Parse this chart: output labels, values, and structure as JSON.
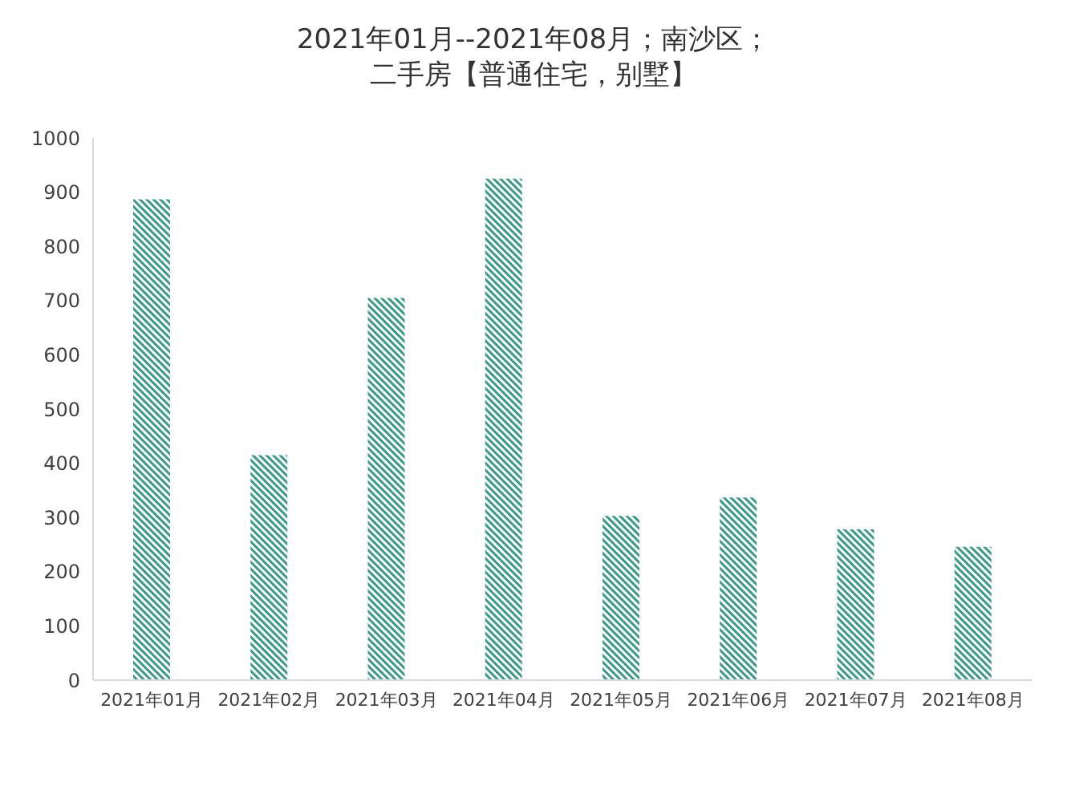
{
  "chart_data": {
    "type": "bar",
    "title": "2021年01月--2021年08月；南沙区；二手房【普通住宅，别墅】",
    "categories": [
      "2021年01月",
      "2021年02月",
      "2021年03月",
      "2021年04月",
      "2021年05月",
      "2021年06月",
      "2021年07月",
      "2021年08月"
    ],
    "values": [
      887,
      415,
      705,
      925,
      303,
      337,
      278,
      246
    ],
    "color": "#3a9a88",
    "ylim": [
      0,
      1000
    ],
    "yticks": [
      0,
      100,
      200,
      300,
      400,
      500,
      600,
      700,
      800,
      900,
      1000
    ]
  }
}
